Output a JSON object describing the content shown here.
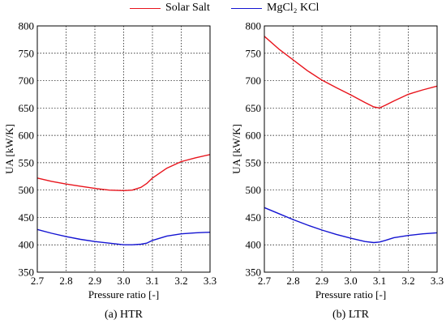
{
  "legend": [
    {
      "label": "Solar Salt",
      "color": "#e8141c"
    },
    {
      "label": "MgCl₂ KCl",
      "color": "#1414d2"
    }
  ],
  "chart_data": [
    {
      "type": "line",
      "xlabel": "Pressure ratio [-]",
      "ylabel": "UA  [kW/K]",
      "caption": "(a) HTR",
      "xlim": [
        2.7,
        3.3
      ],
      "ylim": [
        350,
        800
      ],
      "xticks": [
        2.7,
        2.8,
        2.9,
        3.0,
        3.1,
        3.2,
        3.3
      ],
      "yticks": [
        350,
        400,
        450,
        500,
        550,
        600,
        650,
        700,
        750,
        800
      ],
      "grid": true,
      "series": [
        {
          "name": "Solar Salt",
          "color": "#e8141c",
          "x": [
            2.7,
            2.75,
            2.8,
            2.85,
            2.9,
            2.95,
            3.0,
            3.03,
            3.06,
            3.08,
            3.1,
            3.15,
            3.2,
            3.25,
            3.3
          ],
          "y": [
            522,
            516,
            511,
            507,
            503,
            500,
            499,
            500,
            505,
            512,
            522,
            540,
            552,
            559,
            565
          ]
        },
        {
          "name": "MgCl₂ KCl",
          "color": "#1414d2",
          "x": [
            2.7,
            2.75,
            2.8,
            2.85,
            2.9,
            2.95,
            3.0,
            3.03,
            3.06,
            3.08,
            3.1,
            3.15,
            3.2,
            3.25,
            3.3
          ],
          "y": [
            428,
            421,
            415,
            410,
            406,
            403,
            400,
            400,
            401,
            403,
            408,
            416,
            420,
            422,
            423
          ]
        }
      ]
    },
    {
      "type": "line",
      "xlabel": "Pressure ratio [-]",
      "ylabel": "UA  [kW/K]",
      "caption": "(b) LTR",
      "xlim": [
        2.7,
        3.3
      ],
      "ylim": [
        350,
        800
      ],
      "xticks": [
        2.7,
        2.8,
        2.9,
        3.0,
        3.1,
        3.2,
        3.3
      ],
      "yticks": [
        350,
        400,
        450,
        500,
        550,
        600,
        650,
        700,
        750,
        800
      ],
      "grid": true,
      "series": [
        {
          "name": "Solar Salt",
          "color": "#e8141c",
          "x": [
            2.7,
            2.75,
            2.8,
            2.85,
            2.9,
            2.95,
            3.0,
            3.05,
            3.08,
            3.1,
            3.12,
            3.15,
            3.2,
            3.25,
            3.3
          ],
          "y": [
            781,
            758,
            738,
            718,
            701,
            687,
            674,
            660,
            652,
            650,
            655,
            663,
            675,
            683,
            690
          ]
        },
        {
          "name": "MgCl₂ KCl",
          "color": "#1414d2",
          "x": [
            2.7,
            2.75,
            2.8,
            2.85,
            2.9,
            2.95,
            3.0,
            3.05,
            3.08,
            3.1,
            3.12,
            3.15,
            3.2,
            3.25,
            3.3
          ],
          "y": [
            468,
            457,
            446,
            436,
            427,
            419,
            412,
            406,
            404,
            405,
            408,
            413,
            417,
            420,
            422
          ]
        }
      ]
    }
  ]
}
